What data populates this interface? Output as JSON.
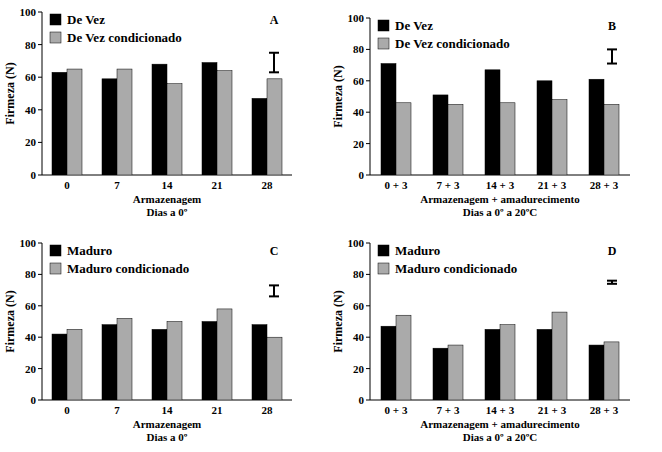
{
  "chart_data": [
    {
      "type": "bar",
      "panel_label": "A",
      "y_label": "Firmeza (N)",
      "x_label": [
        "Armazenagem",
        "Dias a 0º"
      ],
      "categories": [
        "0",
        "7",
        "14",
        "21",
        "28"
      ],
      "series": [
        {
          "name": "De Vez",
          "color": "#000000",
          "values": [
            63,
            59,
            68,
            69,
            47
          ]
        },
        {
          "name": "De Vez condicionado",
          "color": "#aaaaaa",
          "values": [
            65,
            65,
            56,
            64,
            59
          ]
        }
      ],
      "lsd_range": [
        63,
        75
      ],
      "ylim": [
        0,
        100
      ],
      "yticks": [
        0,
        20,
        40,
        60,
        80,
        100
      ],
      "legend": "upper left"
    },
    {
      "type": "bar",
      "panel_label": "B",
      "y_label": "Firmeza (N)",
      "x_label": [
        "Armazenagem + amadurecimento",
        "Dias a 0º a 20ºC"
      ],
      "categories": [
        "0 + 3",
        "7 + 3",
        "14 + 3",
        "21 + 3",
        "28 + 3"
      ],
      "series": [
        {
          "name": "De Vez",
          "color": "#000000",
          "values": [
            71,
            51,
            67,
            60,
            61
          ]
        },
        {
          "name": "De Vez condicionado",
          "color": "#aaaaaa",
          "values": [
            46,
            45,
            46,
            48,
            45
          ]
        }
      ],
      "lsd_range": [
        71,
        80
      ],
      "ylim": [
        0,
        100
      ],
      "yticks": [
        0,
        20,
        40,
        60,
        80,
        100
      ],
      "legend": "upper left"
    },
    {
      "type": "bar",
      "panel_label": "C",
      "y_label": "Firmeza (N)",
      "x_label": [
        "Armazenagem",
        "Dias a 0º"
      ],
      "categories": [
        "0",
        "7",
        "14",
        "21",
        "28"
      ],
      "series": [
        {
          "name": "Maduro",
          "color": "#000000",
          "values": [
            42,
            48,
            45,
            50,
            48
          ]
        },
        {
          "name": "Maduro condicionado",
          "color": "#aaaaaa",
          "values": [
            45,
            52,
            50,
            58,
            40
          ]
        }
      ],
      "lsd_range": [
        66,
        73
      ],
      "ylim": [
        0,
        100
      ],
      "yticks": [
        0,
        20,
        40,
        60,
        80,
        100
      ],
      "legend": "upper left"
    },
    {
      "type": "bar",
      "panel_label": "D",
      "y_label": "Firmeza (N)",
      "x_label": [
        "Armazenagem + amadurecimento",
        "Dias a 0º a 20ºC"
      ],
      "categories": [
        "0 + 3",
        "7 + 3",
        "14 + 3",
        "21 + 3",
        "28 + 3"
      ],
      "series": [
        {
          "name": "Maduro",
          "color": "#000000",
          "values": [
            47,
            33,
            45,
            45,
            35
          ]
        },
        {
          "name": "Maduro condicionado",
          "color": "#aaaaaa",
          "values": [
            54,
            35,
            48,
            56,
            37
          ]
        }
      ],
      "lsd_range": [
        74,
        76
      ],
      "ylim": [
        0,
        100
      ],
      "yticks": [
        0,
        20,
        40,
        60,
        80,
        100
      ],
      "legend": "upper left"
    }
  ]
}
